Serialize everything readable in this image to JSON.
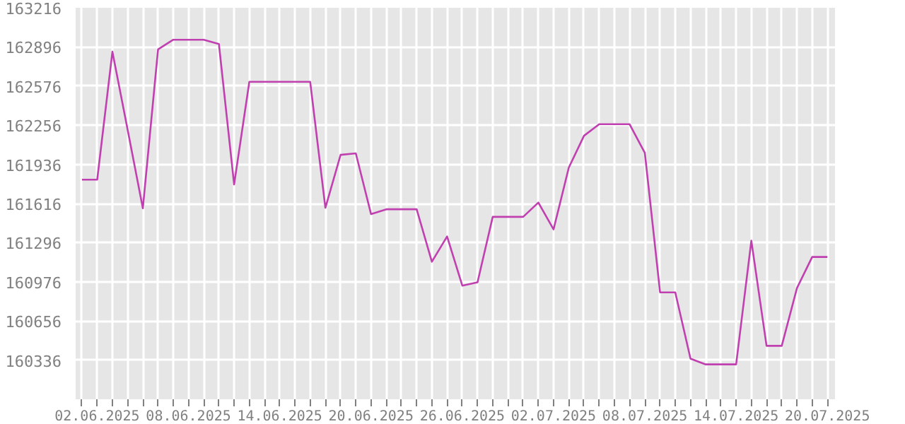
{
  "chart_data": {
    "type": "line",
    "x": [
      "2025-06-01",
      "2025-06-02",
      "2025-06-03",
      "2025-06-04",
      "2025-06-05",
      "2025-06-06",
      "2025-06-07",
      "2025-06-08",
      "2025-06-09",
      "2025-06-10",
      "2025-06-11",
      "2025-06-12",
      "2025-06-13",
      "2025-06-14",
      "2025-06-15",
      "2025-06-16",
      "2025-06-17",
      "2025-06-18",
      "2025-06-19",
      "2025-06-20",
      "2025-06-21",
      "2025-06-22",
      "2025-06-23",
      "2025-06-24",
      "2025-06-25",
      "2025-06-26",
      "2025-06-27",
      "2025-06-28",
      "2025-06-29",
      "2025-06-30",
      "2025-07-01",
      "2025-07-02",
      "2025-07-03",
      "2025-07-04",
      "2025-07-05",
      "2025-07-06",
      "2025-07-07",
      "2025-07-08",
      "2025-07-09",
      "2025-07-10",
      "2025-07-11",
      "2025-07-12",
      "2025-07-13",
      "2025-07-14",
      "2025-07-15",
      "2025-07-16",
      "2025-07-17",
      "2025-07-18",
      "2025-07-19",
      "2025-07-20"
    ],
    "series": [
      {
        "color": "#c040b0",
        "values": [
          161811,
          161811,
          162857,
          162220,
          161577,
          162876,
          162955,
          162955,
          162955,
          162920,
          161772,
          162611,
          162611,
          162611,
          162611,
          162611,
          161581,
          162014,
          162026,
          161530,
          161569,
          161569,
          161569,
          161140,
          161347,
          160945,
          160972,
          161507,
          161507,
          161507,
          161624,
          161405,
          161909,
          162170,
          162264,
          162264,
          162264,
          162030,
          160890,
          160890,
          160348,
          160301,
          160301,
          160301,
          161312,
          160453,
          160453,
          160925,
          161179,
          161179
        ]
      }
    ],
    "xlim": [
      "2025-05-31T14:00",
      "2025-07-20T12:00"
    ],
    "xticks": [
      {
        "value": "2025-06-01",
        "label": null
      },
      {
        "value": "2025-06-02",
        "label": "02.06.2025"
      },
      {
        "value": "2025-06-03",
        "label": null
      },
      {
        "value": "2025-06-04",
        "label": null
      },
      {
        "value": "2025-06-05",
        "label": null
      },
      {
        "value": "2025-06-06",
        "label": null
      },
      {
        "value": "2025-06-07",
        "label": null
      },
      {
        "value": "2025-06-08",
        "label": "08.06.2025"
      },
      {
        "value": "2025-06-09",
        "label": null
      },
      {
        "value": "2025-06-10",
        "label": null
      },
      {
        "value": "2025-06-11",
        "label": null
      },
      {
        "value": "2025-06-12",
        "label": null
      },
      {
        "value": "2025-06-13",
        "label": null
      },
      {
        "value": "2025-06-14",
        "label": "14.06.2025"
      },
      {
        "value": "2025-06-15",
        "label": null
      },
      {
        "value": "2025-06-16",
        "label": null
      },
      {
        "value": "2025-06-17",
        "label": null
      },
      {
        "value": "2025-06-18",
        "label": null
      },
      {
        "value": "2025-06-19",
        "label": null
      },
      {
        "value": "2025-06-20",
        "label": "20.06.2025"
      },
      {
        "value": "2025-06-21",
        "label": null
      },
      {
        "value": "2025-06-22",
        "label": null
      },
      {
        "value": "2025-06-23",
        "label": null
      },
      {
        "value": "2025-06-24",
        "label": null
      },
      {
        "value": "2025-06-25",
        "label": null
      },
      {
        "value": "2025-06-26",
        "label": "26.06.2025"
      },
      {
        "value": "2025-06-27",
        "label": null
      },
      {
        "value": "2025-06-28",
        "label": null
      },
      {
        "value": "2025-06-29",
        "label": null
      },
      {
        "value": "2025-06-30",
        "label": null
      },
      {
        "value": "2025-07-01",
        "label": null
      },
      {
        "value": "2025-07-02",
        "label": "02.07.2025"
      },
      {
        "value": "2025-07-03",
        "label": null
      },
      {
        "value": "2025-07-04",
        "label": null
      },
      {
        "value": "2025-07-05",
        "label": null
      },
      {
        "value": "2025-07-06",
        "label": null
      },
      {
        "value": "2025-07-07",
        "label": null
      },
      {
        "value": "2025-07-08",
        "label": "08.07.2025"
      },
      {
        "value": "2025-07-09",
        "label": null
      },
      {
        "value": "2025-07-10",
        "label": null
      },
      {
        "value": "2025-07-11",
        "label": null
      },
      {
        "value": "2025-07-12",
        "label": null
      },
      {
        "value": "2025-07-13",
        "label": null
      },
      {
        "value": "2025-07-14",
        "label": "14.07.2025"
      },
      {
        "value": "2025-07-15",
        "label": null
      },
      {
        "value": "2025-07-16",
        "label": null
      },
      {
        "value": "2025-07-17",
        "label": null
      },
      {
        "value": "2025-07-18",
        "label": null
      },
      {
        "value": "2025-07-19",
        "label": null
      },
      {
        "value": "2025-07-20",
        "label": "20.07.2025"
      }
    ],
    "ylim": [
      160016,
      163216
    ],
    "yticks": [
      160336,
      160656,
      160976,
      161296,
      161616,
      161936,
      162256,
      162576,
      162896,
      163216
    ],
    "grid": true,
    "marker": "none",
    "line_style": "solid"
  }
}
